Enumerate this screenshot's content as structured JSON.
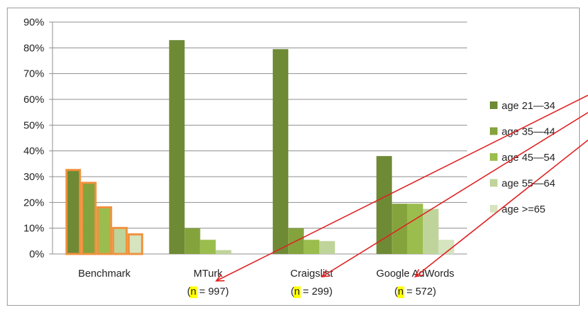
{
  "chart_data": {
    "type": "bar",
    "categories": [
      "Benchmark",
      "MTurk",
      "Craigslist",
      "Google AdWords"
    ],
    "sample_sizes": [
      {
        "pre": "",
        "n": "",
        "post": ""
      },
      {
        "pre": "(",
        "n": "n",
        "post": " = 997)"
      },
      {
        "pre": "(",
        "n": "n",
        "post": " = 299)"
      },
      {
        "pre": "(",
        "n": "n",
        "post": " = 572)"
      }
    ],
    "series": [
      {
        "name": "age 21—34",
        "color": "#6f8a35",
        "values": [
          33,
          83,
          79.5,
          38
        ]
      },
      {
        "name": "age 35—44",
        "color": "#84a33c",
        "values": [
          28,
          10,
          10,
          19.5
        ]
      },
      {
        "name": "age 45—54",
        "color": "#9bbd4e",
        "values": [
          18.5,
          5.5,
          5.5,
          19.5
        ]
      },
      {
        "name": "age 55—64",
        "color": "#bfd49a",
        "values": [
          10.5,
          1.5,
          5,
          17.5
        ]
      },
      {
        "name": "age >=65",
        "color": "#d6e4bf",
        "values": [
          8,
          0,
          0,
          5.5
        ]
      }
    ],
    "ylim": [
      0,
      90
    ],
    "yticks": [
      "0%",
      "10%",
      "20%",
      "30%",
      "40%",
      "50%",
      "60%",
      "70%",
      "80%",
      "90%"
    ],
    "grid": true,
    "legend_position": "right",
    "highlight_category": "Benchmark",
    "highlight_color": "#f0913c",
    "annotation_color": "#e02020",
    "n_highlight_color": "#ffff00"
  }
}
